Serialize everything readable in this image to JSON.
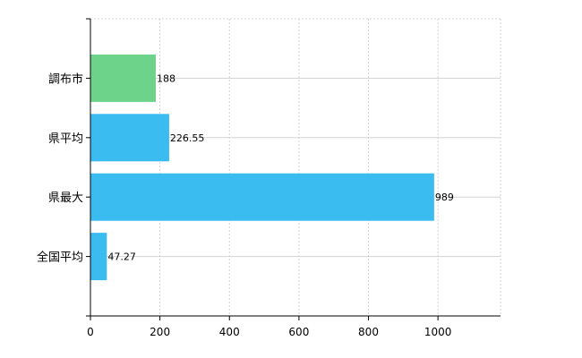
{
  "chart_data": {
    "type": "bar",
    "orientation": "horizontal",
    "categories": [
      "調布市",
      "県平均",
      "県最大",
      "全国平均"
    ],
    "values": [
      188,
      226.55,
      989,
      47.27
    ],
    "value_labels": [
      "188",
      "226.55",
      "989",
      "47.27"
    ],
    "bar_colors": [
      "#6ed38a",
      "#3bbcf1",
      "#3bbcf1",
      "#3bbcf1"
    ],
    "title": "",
    "xlabel": "",
    "ylabel": "",
    "xlim": [
      0,
      1180
    ],
    "x_ticks": [
      0,
      200,
      400,
      600,
      800,
      1000
    ],
    "x_tick_labels": [
      "0",
      "200",
      "400",
      "600",
      "800",
      "1000"
    ],
    "grid": true,
    "legend": "none"
  }
}
